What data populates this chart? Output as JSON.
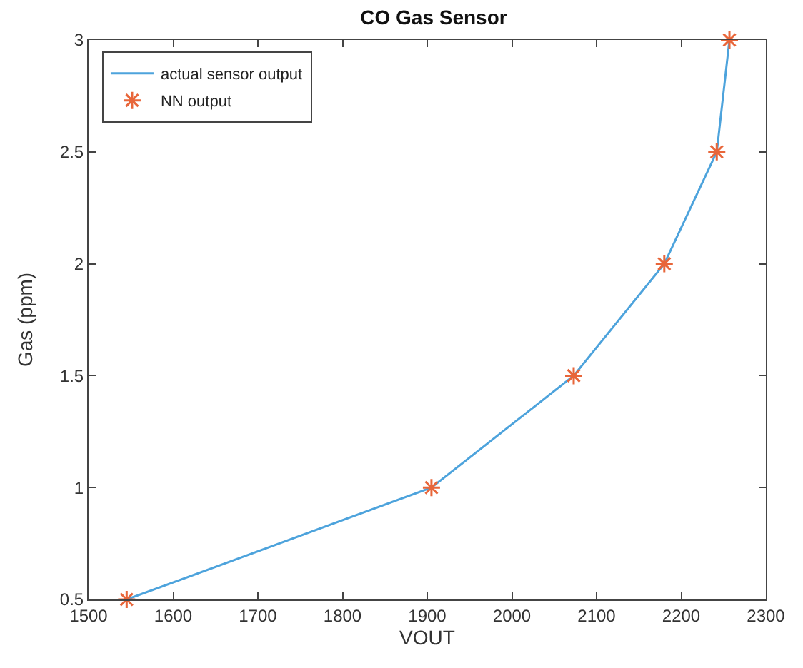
{
  "chart_data": {
    "type": "line",
    "title": "CO Gas Sensor",
    "xlabel": "VOUT",
    "ylabel": "Gas (ppm)",
    "x": [
      1545,
      1905,
      2073,
      2180,
      2242,
      2257
    ],
    "series": [
      {
        "name": "actual sensor output",
        "color": "#4da3dc",
        "values": [
          0.5,
          1,
          1.5,
          2,
          2.5,
          3
        ],
        "marker": "none",
        "line_style": "solid"
      },
      {
        "name": "NN output",
        "type": "scatter",
        "color": "#e8663a",
        "values": [
          0.5,
          1,
          1.5,
          2,
          2.5,
          3
        ],
        "marker": "cross"
      }
    ],
    "xlim": [
      1500,
      2300
    ],
    "xticks": [
      1500,
      1600,
      1700,
      1800,
      1900,
      2000,
      2100,
      2200,
      2300
    ],
    "ylim": [
      0.5,
      3
    ],
    "yticks": [
      0.5,
      1,
      1.5,
      2,
      2.5,
      3
    ],
    "legend": "top left"
  }
}
